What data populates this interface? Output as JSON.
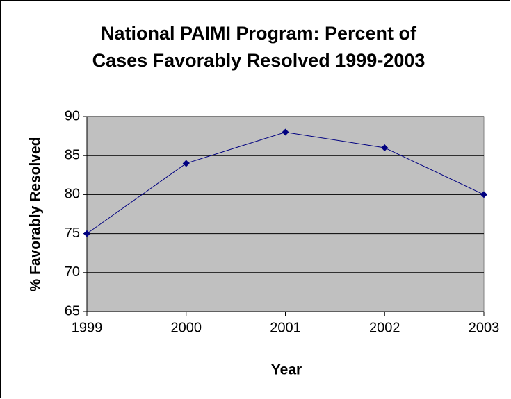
{
  "chart_data": {
    "type": "line",
    "title": [
      "National PAIMI Program: Percent of",
      "Cases Favorably Resolved 1999-2003"
    ],
    "x_label": "Year",
    "y_label": "% Favorably Resolved",
    "x": [
      1999,
      2000,
      2001,
      2002,
      2003
    ],
    "series": [
      {
        "name": "% Favorably Resolved",
        "color": "#000080",
        "values": [
          75,
          84,
          88,
          86,
          80
        ]
      }
    ],
    "xlim": [
      1999,
      2003
    ],
    "xticks": [
      1999,
      2000,
      2001,
      2002,
      2003
    ],
    "ylim": [
      65,
      90
    ],
    "yticks": [
      65,
      70,
      75,
      80,
      85,
      90
    ],
    "grid": true,
    "plot_background": "#c0c0c0"
  }
}
